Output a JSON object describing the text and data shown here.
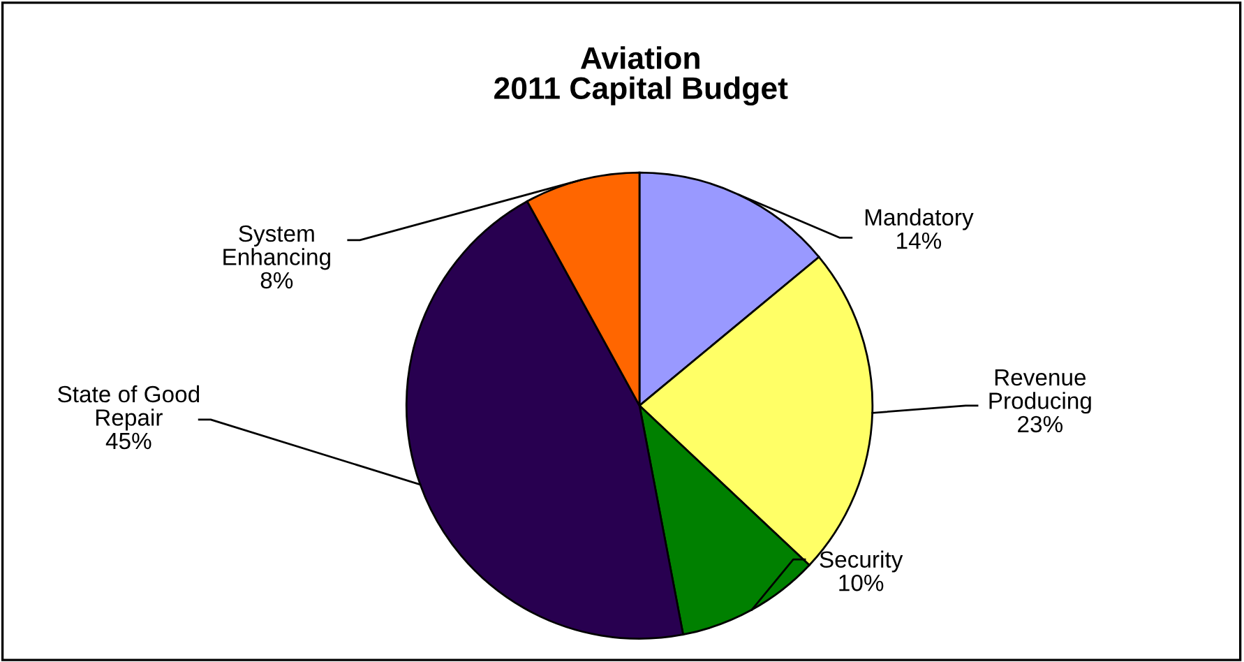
{
  "chart_data": {
    "type": "pie",
    "title": "Aviation\n2011 Capital Budget",
    "categories": [
      "Mandatory",
      "Revenue\nProducing",
      "Security",
      "State of Good\nRepair",
      "System\nEnhancing"
    ],
    "values": [
      14,
      23,
      10,
      45,
      8
    ],
    "colors": [
      "#9999ff",
      "#ffff66",
      "#008000",
      "#280050",
      "#ff6600"
    ],
    "value_labels": [
      "14%",
      "23%",
      "10%",
      "45%",
      "8%"
    ],
    "legend": false
  }
}
